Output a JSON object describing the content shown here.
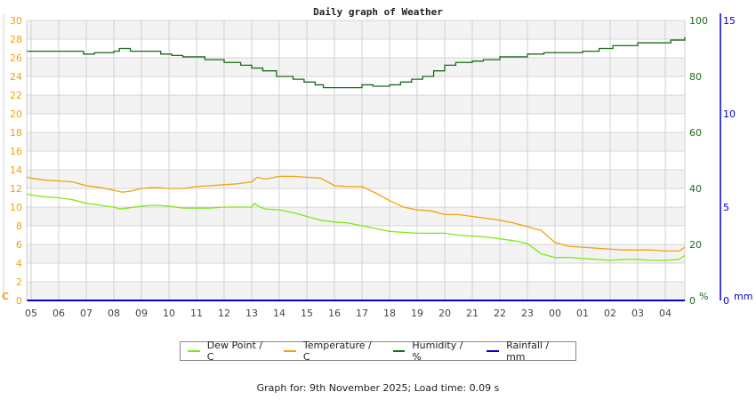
{
  "chart_data": {
    "type": "line",
    "title": "Daily graph of Weather",
    "x_ticks": [
      "05",
      "06",
      "07",
      "08",
      "09",
      "10",
      "11",
      "12",
      "13",
      "14",
      "15",
      "16",
      "17",
      "18",
      "19",
      "20",
      "21",
      "22",
      "23",
      "00",
      "01",
      "02",
      "03",
      "04"
    ],
    "y_left": {
      "label": "C",
      "ticks": [
        0,
        2,
        4,
        6,
        8,
        10,
        12,
        14,
        16,
        18,
        20,
        22,
        24,
        26,
        28,
        30
      ],
      "range": [
        0,
        30
      ],
      "color": "#f0a30a"
    },
    "y_right_humidity": {
      "label": "%",
      "ticks": [
        0,
        20,
        40,
        60,
        80,
        100
      ],
      "range": [
        0,
        100
      ],
      "color": "#1a6b1a"
    },
    "y_right_rain": {
      "label": "mm",
      "ticks": [
        0,
        5,
        10,
        15
      ],
      "range": [
        0,
        15
      ],
      "color": "#0000cc"
    },
    "grid": true,
    "legend_position": "bottom",
    "series": [
      {
        "name": "Dew Point / C",
        "color": "#7fe817",
        "axis": "left",
        "x": [
          -0.15,
          0,
          0.5,
          1,
          1.5,
          2,
          2.5,
          3,
          3.2,
          3.5,
          4,
          4.5,
          5,
          5.5,
          6,
          6.5,
          7,
          7.5,
          8,
          8.1,
          8.3,
          8.5,
          9,
          9.5,
          10,
          10.5,
          11,
          11.5,
          12,
          12.5,
          13,
          13.5,
          14,
          14.5,
          15,
          15.5,
          16,
          16.5,
          17,
          17.5,
          18,
          18.5,
          19,
          19.5,
          20,
          20.5,
          21,
          21.5,
          22,
          22.5,
          23,
          23.5,
          23.85
        ],
        "y": [
          11.4,
          11.3,
          11.1,
          11.0,
          10.8,
          10.4,
          10.2,
          10.0,
          9.8,
          9.9,
          10.1,
          10.2,
          10.1,
          9.9,
          9.9,
          9.9,
          10.0,
          10.0,
          10.0,
          10.4,
          10.0,
          9.8,
          9.7,
          9.4,
          9.0,
          8.6,
          8.4,
          8.3,
          8.0,
          7.7,
          7.4,
          7.3,
          7.2,
          7.2,
          7.2,
          7.0,
          6.9,
          6.8,
          6.6,
          6.4,
          6.1,
          5.0,
          4.6,
          4.6,
          4.5,
          4.4,
          4.3,
          4.4,
          4.4,
          4.3,
          4.3,
          4.4,
          4.8
        ]
      },
      {
        "name": "Temperature / C",
        "color": "#f0a30a",
        "axis": "left",
        "x": [
          -0.15,
          0,
          0.5,
          1,
          1.5,
          2,
          2.5,
          3,
          3.3,
          3.6,
          4,
          4.5,
          5,
          5.5,
          6,
          6.5,
          7,
          7.5,
          8,
          8.2,
          8.5,
          9,
          9.5,
          10,
          10.5,
          11,
          11.5,
          12,
          12.5,
          13,
          13.5,
          14,
          14.5,
          15,
          15.5,
          16,
          16.5,
          17,
          17.5,
          18,
          18.5,
          19,
          19.5,
          20,
          20.5,
          21,
          21.5,
          22,
          22.5,
          23,
          23.5,
          23.85
        ],
        "y": [
          13.2,
          13.1,
          12.9,
          12.8,
          12.7,
          12.3,
          12.1,
          11.8,
          11.6,
          11.7,
          12.0,
          12.1,
          12.0,
          12.0,
          12.2,
          12.3,
          12.4,
          12.5,
          12.7,
          13.2,
          13.0,
          13.3,
          13.3,
          13.2,
          13.1,
          12.3,
          12.2,
          12.2,
          11.5,
          10.7,
          10.0,
          9.7,
          9.6,
          9.2,
          9.2,
          9.0,
          8.8,
          8.6,
          8.3,
          7.9,
          7.5,
          6.2,
          5.8,
          5.7,
          5.6,
          5.5,
          5.4,
          5.4,
          5.4,
          5.3,
          5.3,
          5.7
        ]
      },
      {
        "name": "Humidity / %",
        "color": "#1a6b1a",
        "axis": "right",
        "x": [
          -0.15,
          1.3,
          1.9,
          2.3,
          3,
          3.2,
          3.6,
          4.2,
          4.7,
          5.1,
          5.5,
          6.3,
          7,
          7.6,
          8,
          8.4,
          8.9,
          9.5,
          9.9,
          10.3,
          10.6,
          11.4,
          12,
          12.4,
          13,
          13.4,
          13.8,
          14.2,
          14.6,
          15,
          15.4,
          16,
          16.4,
          17,
          18,
          18.6,
          20,
          20.6,
          21.1,
          22,
          23.2,
          23.85
        ],
        "y": [
          89,
          89,
          88,
          88.5,
          89,
          90,
          89,
          89,
          88,
          87.5,
          87,
          86,
          85,
          84,
          83,
          82,
          80,
          79,
          78,
          77,
          76,
          76,
          77,
          76.5,
          77,
          78,
          79,
          80,
          82,
          84,
          85,
          85.5,
          86,
          87,
          88,
          88.5,
          89,
          90,
          91,
          92,
          93,
          94
        ]
      },
      {
        "name": "Rainfall / mm",
        "color": "#0000cc",
        "axis": "right2",
        "x": [
          -0.15,
          23.85
        ],
        "y": [
          0,
          0
        ]
      }
    ]
  },
  "legend": {
    "items": [
      {
        "label": "Dew Point / C",
        "color": "#7fe817"
      },
      {
        "label": "Temperature / C",
        "color": "#f0a30a"
      },
      {
        "label": "Humidity / %",
        "color": "#1a6b1a"
      },
      {
        "label": "Rainfall / mm",
        "color": "#0000cc"
      }
    ]
  },
  "footer": {
    "text": "Graph for: 9th November 2025; Load time: 0.09 s"
  }
}
